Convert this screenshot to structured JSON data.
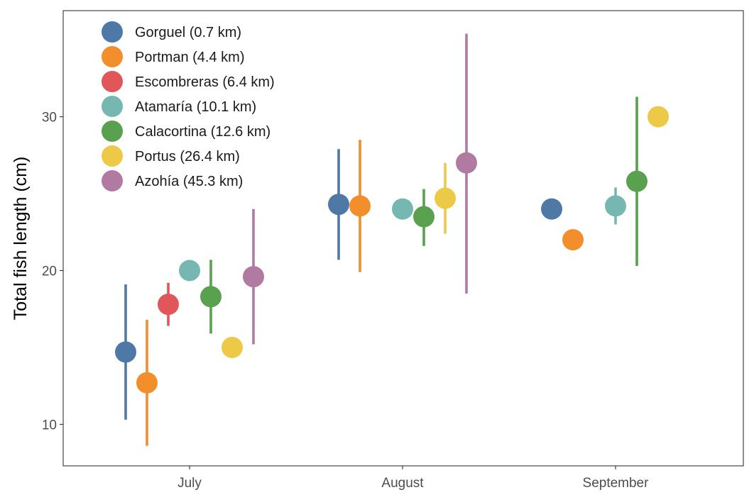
{
  "chart_data": {
    "type": "scatter",
    "subtype": "point-range",
    "title": "",
    "xlabel": "",
    "ylabel": "Total fish length (cm)",
    "categories": [
      "July",
      "August",
      "September"
    ],
    "ylim": [
      7.3,
      36.9
    ],
    "yticks": [
      10,
      20,
      30
    ],
    "grid": false,
    "legend_position": "top-left inside",
    "series": [
      {
        "name": "Gorguel (0.7 km)",
        "color": "#4E79A7",
        "points": [
          {
            "x": "July",
            "y": 14.7,
            "low": 10.3,
            "high": 19.1
          },
          {
            "x": "August",
            "y": 24.3,
            "low": 20.7,
            "high": 27.9
          },
          {
            "x": "September",
            "y": 24.0
          }
        ]
      },
      {
        "name": "Portman (4.4 km)",
        "color": "#F28E2B",
        "points": [
          {
            "x": "July",
            "y": 12.7,
            "low": 8.6,
            "high": 16.8
          },
          {
            "x": "August",
            "y": 24.2,
            "low": 19.9,
            "high": 28.5
          },
          {
            "x": "September",
            "y": 22.0
          }
        ]
      },
      {
        "name": "Escombreras (6.4 km)",
        "color": "#E15759",
        "points": [
          {
            "x": "July",
            "y": 17.8,
            "low": 16.4,
            "high": 19.2
          }
        ]
      },
      {
        "name": "Atamaría (10.1 km)",
        "color": "#76B7B2",
        "points": [
          {
            "x": "July",
            "y": 20.0
          },
          {
            "x": "August",
            "y": 24.0
          },
          {
            "x": "September",
            "y": 24.2,
            "low": 23.0,
            "high": 25.4
          }
        ]
      },
      {
        "name": "Calacortina (12.6 km)",
        "color": "#59A14F",
        "points": [
          {
            "x": "July",
            "y": 18.3,
            "low": 15.9,
            "high": 20.7
          },
          {
            "x": "August",
            "y": 23.5,
            "low": 21.6,
            "high": 25.3
          },
          {
            "x": "September",
            "y": 25.8,
            "low": 20.3,
            "high": 31.3
          }
        ]
      },
      {
        "name": "Portus (26.4 km)",
        "color": "#EDC948",
        "points": [
          {
            "x": "July",
            "y": 15.0
          },
          {
            "x": "August",
            "y": 24.7,
            "low": 22.4,
            "high": 27.0
          },
          {
            "x": "September",
            "y": 30.0
          }
        ]
      },
      {
        "name": "Azohía (45.3 km)",
        "color": "#B07AA1",
        "points": [
          {
            "x": "July",
            "y": 19.6,
            "low": 15.2,
            "high": 24.0
          },
          {
            "x": "August",
            "y": 27.0,
            "low": 18.5,
            "high": 35.4
          }
        ]
      }
    ]
  }
}
